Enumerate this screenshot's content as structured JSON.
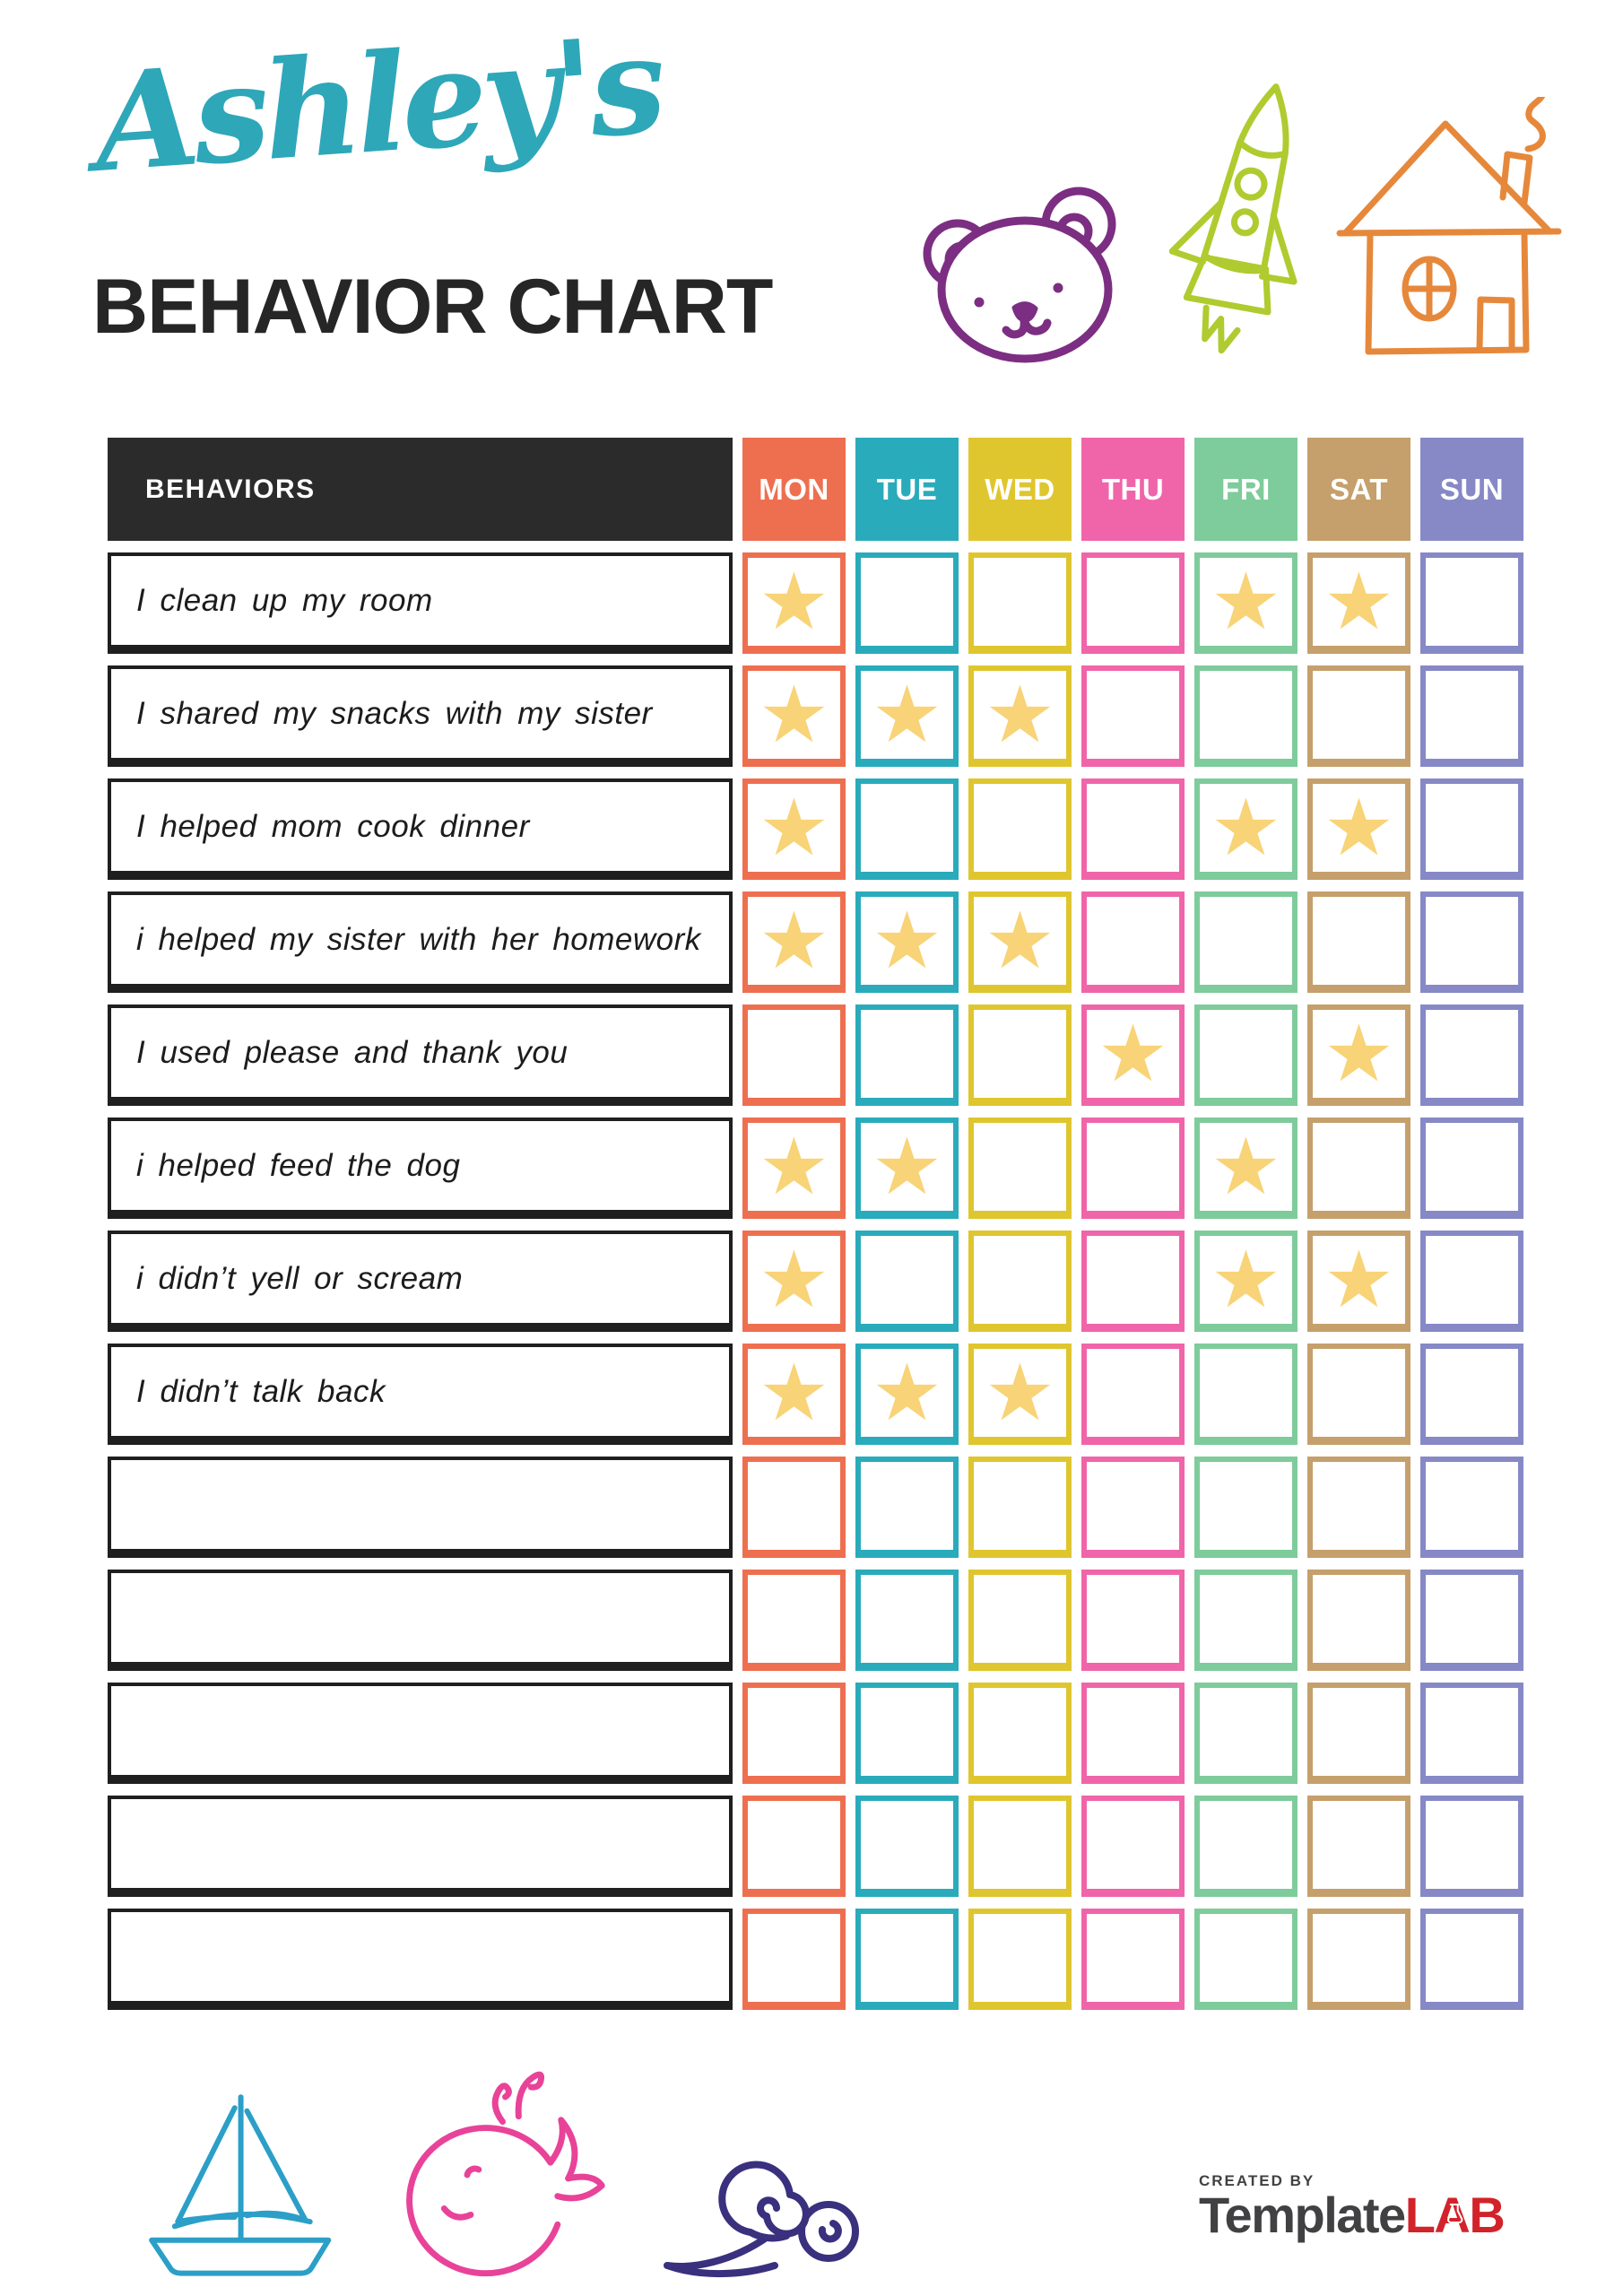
{
  "header": {
    "script_title": "Ashley's",
    "script_color": "#2EA7B9",
    "main_title": "BEHAVIOR CHART",
    "main_color": "#262626",
    "icons": [
      {
        "name": "bear-icon",
        "color": "#7C2E82"
      },
      {
        "name": "rocket-icon",
        "color": "#AFCB2F"
      },
      {
        "name": "house-icon",
        "color": "#E6883B"
      }
    ]
  },
  "table": {
    "behaviors_header": "BEHAVIORS",
    "behaviors_header_bg": "#2B2B2B",
    "days": [
      {
        "label": "MON",
        "color": "#EE6F50"
      },
      {
        "label": "TUE",
        "color": "#2AABBB"
      },
      {
        "label": "WED",
        "color": "#DFC62F"
      },
      {
        "label": "THU",
        "color": "#F065A9"
      },
      {
        "label": "FRI",
        "color": "#7ECB9B"
      },
      {
        "label": "SAT",
        "color": "#C5A06C"
      },
      {
        "label": "SUN",
        "color": "#8689C6"
      }
    ],
    "star_glyph": "★",
    "star_color": "#F8D377",
    "rows": [
      {
        "behavior": "I clean up my room",
        "stars": [
          "MON",
          "FRI",
          "SAT"
        ]
      },
      {
        "behavior": "I shared my snacks with my sister",
        "stars": [
          "MON",
          "TUE",
          "WED"
        ]
      },
      {
        "behavior": "I helped mom cook dinner",
        "stars": [
          "MON",
          "FRI",
          "SAT"
        ]
      },
      {
        "behavior": "i helped my sister with her homework",
        "stars": [
          "MON",
          "TUE",
          "WED"
        ]
      },
      {
        "behavior": "I used please and thank you",
        "stars": [
          "THU",
          "SAT"
        ]
      },
      {
        "behavior": "i helped feed the dog",
        "stars": [
          "MON",
          "TUE",
          "FRI"
        ]
      },
      {
        "behavior": "i didn’t yell or scream",
        "stars": [
          "MON",
          "FRI",
          "SAT"
        ]
      },
      {
        "behavior": "I didn’t talk back",
        "stars": [
          "MON",
          "TUE",
          "WED"
        ]
      },
      {
        "behavior": "",
        "stars": []
      },
      {
        "behavior": "",
        "stars": []
      },
      {
        "behavior": "",
        "stars": []
      },
      {
        "behavior": "",
        "stars": []
      },
      {
        "behavior": "",
        "stars": []
      }
    ]
  },
  "footer": {
    "created_by": "CREATED BY",
    "brand_name": "Template",
    "brand_suffix": "LAB",
    "brand_color": "#414042",
    "brand_accent": "#D2232A",
    "icons": [
      {
        "name": "sailboat-icon",
        "color": "#2B9FC7"
      },
      {
        "name": "whale-icon",
        "color": "#E84399"
      },
      {
        "name": "snail-icon",
        "color": "#39307E"
      }
    ]
  }
}
